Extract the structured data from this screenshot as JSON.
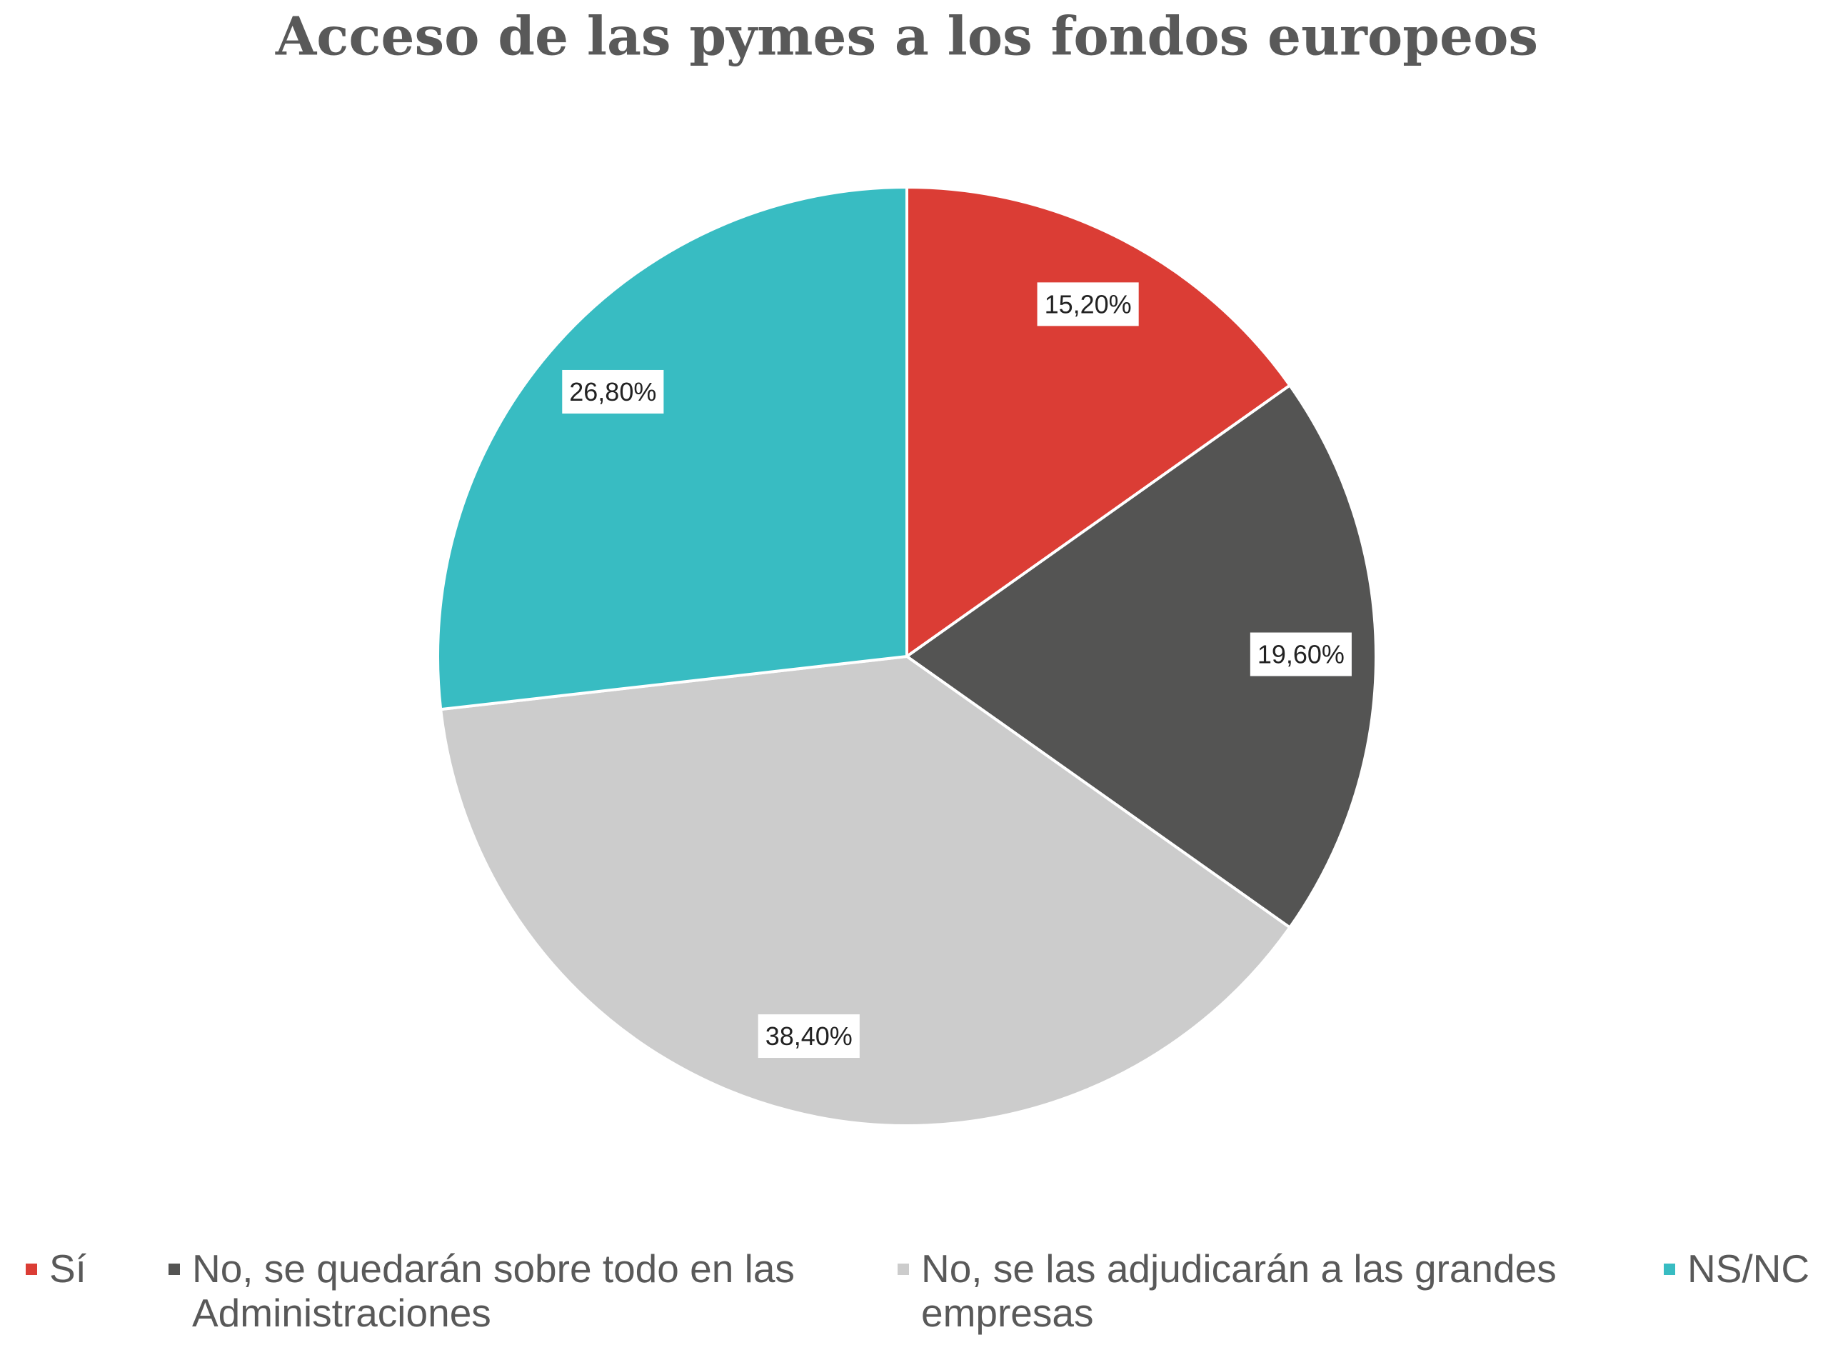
{
  "chart_data": {
    "type": "pie",
    "title": "Acceso de las pymes a los fondos europeos",
    "categories": [
      "Sí",
      "No, se quedarán sobre todo en las Administraciones",
      "No, se las adjudicarán a las grandes empresas",
      "NS/NC"
    ],
    "values": [
      15.2,
      19.6,
      38.4,
      26.8
    ],
    "value_labels": [
      "15,20%",
      "19,60%",
      "38,40%",
      "26,80%"
    ],
    "colors": [
      "#db3d35",
      "#545453",
      "#cccccc",
      "#38bcc2"
    ],
    "legend": "bottom"
  }
}
